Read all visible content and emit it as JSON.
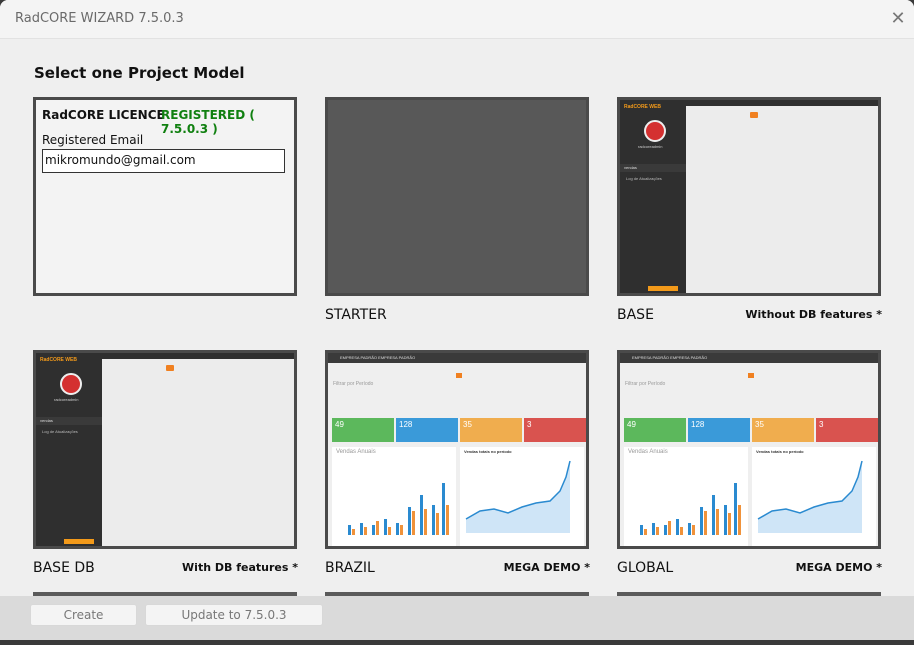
{
  "window": {
    "title": "RadCORE WIZARD 7.5.0.3",
    "close_glyph": "✕"
  },
  "heading": "Select one Project Model",
  "licence": {
    "label": "RadCORE LICENCE",
    "status": "REGISTERED ( 7.5.0.3 )",
    "email_label": "Registered Email",
    "email_value": "mikromundo@gmail.com"
  },
  "projects": [
    {
      "name": "STARTER",
      "subtitle": ""
    },
    {
      "name": "BASE",
      "subtitle": "Without DB features *"
    },
    {
      "name": "BASE DB",
      "subtitle": "With DB features *"
    },
    {
      "name": "BRAZIL",
      "subtitle": "MEGA DEMO *"
    },
    {
      "name": "GLOBAL",
      "subtitle": "MEGA DEMO *"
    }
  ],
  "mock": {
    "logo": "RadCORE WEB",
    "menu": "vendas",
    "menu_item": "Log de Atualizações",
    "user": "radcoreadmin",
    "company": "EMPRESA PADRÃO EMPRESA PADRÃO",
    "filter": "Filtrar por Período",
    "kpis": [
      "49",
      "128",
      "35",
      "3"
    ],
    "chart_left": "Vendas Anuais",
    "chart_right": "Vendas totais no período"
  },
  "colors": {
    "kpi": [
      "#5cb85c",
      "#3a9ad9",
      "#f0ad4e",
      "#d9534f"
    ],
    "accent": "#f08020"
  },
  "buttons": {
    "create": "Create",
    "update": "Update to 7.5.0.3"
  }
}
